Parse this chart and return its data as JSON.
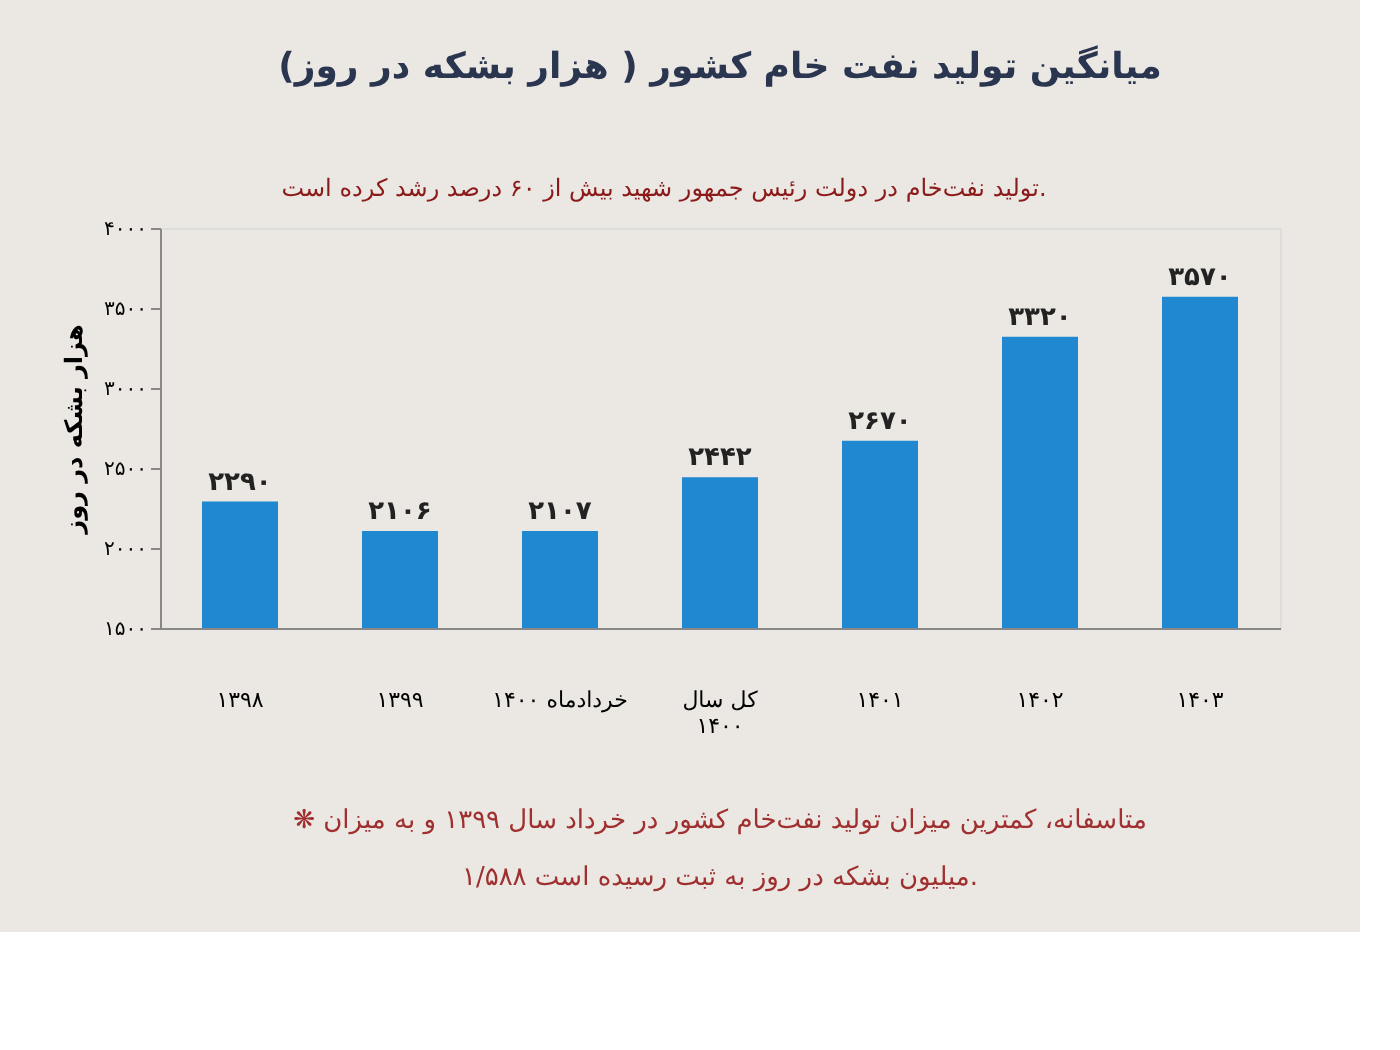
{
  "chart_data": {
    "type": "bar",
    "title": "میانگین تولید نفت خام کشور ( هزار بشکه در روز)",
    "ylabel": "هزار بشکه در روز",
    "categories": [
      "۱۳۹۸",
      "۱۳۹۹",
      "خردادماه ۱۴۰۰",
      "کل سال\n۱۴۰۰",
      "۱۴۰۱",
      "۱۴۰۲",
      "۱۴۰۳"
    ],
    "values": [
      2290,
      2106,
      2107,
      2442,
      2670,
      3320,
      3570
    ],
    "value_labels": [
      "۲۲۹۰",
      "۲۱۰۶",
      "۲۱۰۷",
      "۲۴۴۲",
      "۲۶۷۰",
      "۳۳۲۰",
      "۳۵۷۰"
    ],
    "color": "#1f88d0",
    "ylim": [
      1500,
      4000
    ],
    "yticks": [
      {
        "value": 1500,
        "label": "۱۵۰۰"
      },
      {
        "value": 2000,
        "label": "۲۰۰۰"
      },
      {
        "value": 2500,
        "label": "۲۵۰۰"
      },
      {
        "value": 3000,
        "label": "۳۰۰۰"
      },
      {
        "value": 3500,
        "label": "۳۵۰۰"
      },
      {
        "value": 4000,
        "label": "۴۰۰۰"
      }
    ],
    "grid": false,
    "annotations": [
      "تولید نفت‌خام در دولت رئیس جمهور شهید بیش از ۶۰ درصد رشد کرده است.",
      "❋ متاسفانه، کمترین میزان تولید نفت‌خام کشور در خرداد سال ۱۳۹۹ و به میزان\n۱/۵۸۸ میلیون بشکه در روز به ثبت رسیده است."
    ]
  }
}
